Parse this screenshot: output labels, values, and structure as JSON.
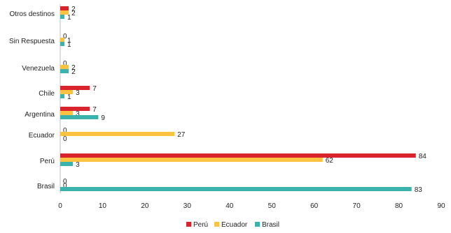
{
  "chart_data": {
    "type": "bar",
    "orientation": "horizontal",
    "title": "",
    "xlabel": "",
    "ylabel": "",
    "xlim": [
      0,
      90
    ],
    "xticks": [
      0,
      10,
      20,
      30,
      40,
      50,
      60,
      70,
      80,
      90
    ],
    "grid": false,
    "legend_position": "bottom",
    "categories": [
      "Otros destinos",
      "Sin Respuesta",
      "Venezuela",
      "Chile",
      "Argentina",
      "Ecuador",
      "Perú",
      "Brasil"
    ],
    "series": [
      {
        "name": "Perú",
        "color": "#d9232d",
        "values": [
          2,
          0,
          0,
          7,
          7,
          0,
          84,
          0
        ]
      },
      {
        "name": "Ecuador",
        "color": "#fcc342",
        "values": [
          2,
          1,
          2,
          3,
          3,
          27,
          62,
          0
        ]
      },
      {
        "name": "Brasil",
        "color": "#3bb3ac",
        "values": [
          1,
          1,
          2,
          1,
          9,
          0,
          3,
          83
        ]
      }
    ]
  }
}
